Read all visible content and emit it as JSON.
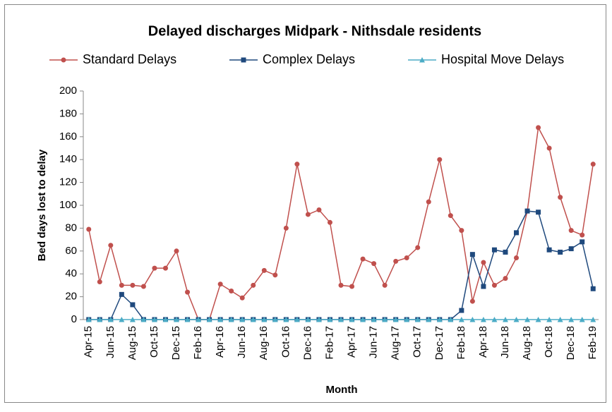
{
  "chart_data": {
    "type": "line",
    "title": "Delayed discharges Midpark - Nithsdale residents",
    "x_label": "Month",
    "y_label": "Bed days  lost to delay",
    "categories": [
      "Apr-15",
      null,
      "Jun-15",
      null,
      "Aug-15",
      null,
      "Oct-15",
      null,
      "Dec-15",
      null,
      "Feb-16",
      null,
      "Apr-16",
      null,
      "Jun-16",
      null,
      "Aug-16",
      null,
      "Oct-16",
      null,
      "Dec-16",
      null,
      "Feb-17",
      null,
      "Apr-17",
      null,
      "Jun-17",
      null,
      "Aug-17",
      null,
      "Oct-17",
      null,
      "Dec-17",
      null,
      "Feb-18",
      null,
      "Apr-18",
      null,
      "Jun-18",
      null,
      "Aug-18",
      null,
      "Oct-18",
      null,
      "Dec-18",
      null,
      "Feb-19"
    ],
    "series": [
      {
        "name": "Standard Delays",
        "color": "#c0504d",
        "marker": "circle",
        "values": [
          79,
          33,
          65,
          30,
          30,
          29,
          45,
          45,
          60,
          24,
          0,
          0,
          31,
          25,
          19,
          30,
          43,
          39,
          80,
          136,
          92,
          96,
          85,
          30,
          29,
          53,
          49,
          30,
          51,
          54,
          63,
          103,
          140,
          91,
          78,
          16,
          50,
          30,
          36,
          54,
          95,
          168,
          150,
          107,
          78,
          74,
          136
        ]
      },
      {
        "name": "Complex Delays",
        "color": "#1f497d",
        "marker": "square",
        "values": [
          0,
          0,
          0,
          22,
          13,
          0,
          0,
          0,
          0,
          0,
          0,
          0,
          0,
          0,
          0,
          0,
          0,
          0,
          0,
          0,
          0,
          0,
          0,
          0,
          0,
          0,
          0,
          0,
          0,
          0,
          0,
          0,
          0,
          0,
          8,
          57,
          29,
          61,
          59,
          76,
          95,
          94,
          61,
          59,
          62,
          68,
          27
        ]
      },
      {
        "name": "Hospital Move Delays",
        "color": "#4bacc6",
        "marker": "triangle",
        "values": [
          0,
          0,
          0,
          0,
          0,
          0,
          0,
          0,
          0,
          0,
          0,
          0,
          0,
          0,
          0,
          0,
          0,
          0,
          0,
          0,
          0,
          0,
          0,
          0,
          0,
          0,
          0,
          0,
          0,
          0,
          0,
          0,
          0,
          0,
          0,
          0,
          0,
          0,
          0,
          0,
          0,
          0,
          0,
          0,
          0,
          0,
          0
        ]
      }
    ],
    "ylim": [
      0,
      200
    ],
    "yticks": [
      0,
      20,
      40,
      60,
      80,
      100,
      120,
      140,
      160,
      180,
      200
    ],
    "grid": false,
    "legend": "top"
  }
}
